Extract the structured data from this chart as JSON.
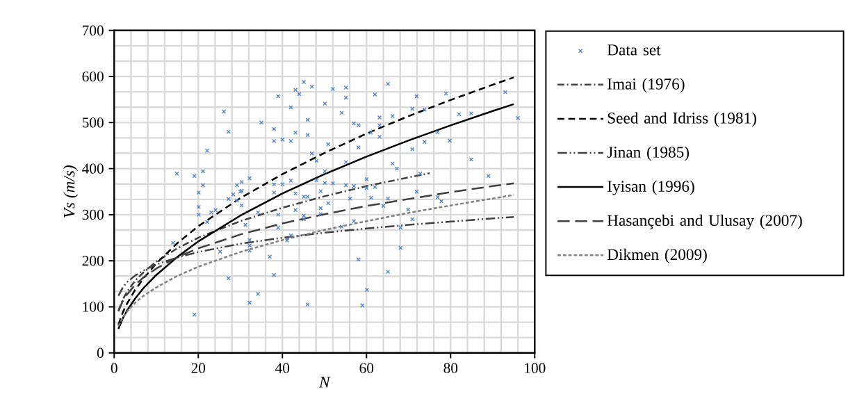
{
  "chart_data": {
    "type": "line",
    "xlabel": "N",
    "ylabel": "Vs (m/s)",
    "xlim": [
      0,
      100
    ],
    "ylim": [
      0,
      700
    ],
    "xticks": [
      0,
      20,
      40,
      60,
      80,
      100
    ],
    "yticks": [
      0,
      100,
      200,
      300,
      400,
      500,
      600,
      700
    ],
    "grid": true,
    "legend": "right",
    "series": [
      {
        "name": "Data set",
        "type": "scatter",
        "marker": "cross",
        "color": "#4f81bd",
        "x": [
          26.1,
          27.2,
          22.1,
          14.9,
          19.1,
          21.1,
          21.1,
          20.1,
          20.1,
          20.1,
          22.1,
          23.1,
          24.1,
          32.2,
          29.2,
          30.3,
          30.3,
          30,
          28.3,
          27.2,
          29.2,
          30.3,
          31.2,
          32.2,
          32.2,
          32.2,
          34.2,
          25.2,
          14.0,
          27.2,
          34.2,
          32.2,
          19.1,
          35.0,
          39.0,
          38.0,
          38.0,
          40.0,
          42.0,
          42.0,
          43.1,
          44.0,
          45.1,
          47.0,
          43.1,
          46.0,
          46.0,
          50.1,
          52.0,
          55.1,
          55.1,
          54.1,
          57.0,
          58.1,
          50.9,
          47.0,
          48.1,
          50.1,
          48.1,
          50.1,
          52.0,
          55.1,
          58.1,
          60.0,
          61.0,
          62.0,
          63.1,
          63.1,
          63.1,
          65.1,
          66.2,
          66.2,
          67.2,
          38.0,
          40.0,
          42.0,
          38.0,
          43.1,
          49.1,
          45.1,
          46.0,
          55.1,
          57.0,
          60.0,
          62.0,
          56.1,
          61.1,
          65.1,
          50.9,
          49.1,
          64.0,
          39.0,
          43.1,
          45.1,
          45.1,
          49.1,
          39.0,
          42.0,
          41.1,
          54.1,
          57.0,
          68.1,
          68.1,
          37.0,
          38.0,
          58.1,
          65.1,
          60.1,
          46.0,
          59.0,
          71.9,
          70.9,
          73.8,
          78.9,
          93.0,
          82.0,
          84.9,
          96.0,
          76.9,
          73.8,
          70.9,
          79.8,
          84.9,
          72.8,
          89.0,
          71.9,
          76.9,
          77.8,
          69.9,
          70.9
        ],
        "values": [
          524,
          480,
          439,
          389,
          384,
          394,
          364,
          348,
          317,
          300,
          284,
          305,
          310,
          379,
          364,
          371,
          352,
          350,
          344,
          334,
          331,
          320,
          278,
          245,
          233,
          222,
          305,
          220,
          239,
          162,
          128,
          109,
          83,
          500,
          557,
          486,
          460,
          463,
          460,
          533,
          571,
          562,
          588,
          578,
          478,
          506,
          473,
          541,
          573,
          576,
          554,
          521,
          498,
          494,
          453,
          433,
          417,
          394,
          375,
          369,
          368,
          414,
          446,
          377,
          478,
          561,
          511,
          494,
          469,
          584,
          514,
          411,
          400,
          366,
          366,
          374,
          348,
          346,
          351,
          339,
          339,
          364,
          362,
          358,
          360,
          335,
          337,
          335,
          325,
          314,
          319,
          300,
          310,
          298,
          290,
          301,
          272,
          255,
          244,
          274,
          286,
          272,
          228,
          209,
          169,
          203,
          176,
          137,
          105,
          103,
          557,
          530,
          528,
          563,
          566,
          518,
          520,
          510,
          479,
          458,
          442,
          461,
          420,
          389,
          384,
          350,
          338,
          329,
          311,
          290
        ]
      },
      {
        "name": "Imai (1976)",
        "line_style": "dashdotted",
        "color": "#404040",
        "x": [
          1,
          2,
          3,
          5,
          7,
          10,
          15,
          20,
          30,
          40,
          50,
          60,
          70,
          75
        ],
        "values": [
          91,
          115,
          132,
          157,
          175,
          198,
          227,
          250,
          286,
          315,
          340,
          362,
          381,
          390
        ]
      },
      {
        "name": "Seed and Idriss (1981)",
        "line_style": "dashed",
        "color": "#000000",
        "x": [
          1,
          2,
          3,
          5,
          7,
          10,
          15,
          20,
          30,
          40,
          50,
          60,
          70,
          80,
          90,
          95
        ],
        "values": [
          61,
          87,
          106,
          137,
          162,
          194,
          238,
          275,
          336,
          388,
          434,
          476,
          514,
          549,
          582,
          598
        ]
      },
      {
        "name": "Jinan (1985)",
        "line_style": "dashdotdotted",
        "color": "#404040",
        "x": [
          1,
          2,
          3,
          5,
          7,
          10,
          15,
          20,
          30,
          40,
          50,
          60,
          70,
          80,
          90,
          95
        ],
        "values": [
          124,
          141,
          153,
          168,
          179,
          192,
          207,
          219,
          237,
          250,
          261,
          270,
          278,
          285,
          292,
          295
        ]
      },
      {
        "name": "Iyisan (1996)",
        "line_style": "solid",
        "color": "#000000",
        "x": [
          1,
          2,
          3,
          5,
          7,
          10,
          15,
          20,
          30,
          40,
          50,
          60,
          70,
          80,
          90,
          95
        ],
        "values": [
          52,
          74,
          91,
          118,
          141,
          169,
          208,
          242,
          298,
          346,
          388,
          426,
          461,
          494,
          525,
          540
        ]
      },
      {
        "name": "Hasançebi and Ulusay (2007)",
        "line_style": "longdashed",
        "color": "#404040",
        "x": [
          1,
          2,
          3,
          5,
          7,
          10,
          15,
          20,
          30,
          40,
          50,
          60,
          70,
          80,
          90,
          95
        ],
        "values": [
          90,
          112,
          126,
          148,
          164,
          183,
          208,
          227,
          257,
          281,
          301,
          319,
          334,
          349,
          362,
          368
        ]
      },
      {
        "name": "Dikmen (2009)",
        "line_style": "dotted",
        "color": "#808080",
        "x": [
          1,
          2,
          3,
          5,
          7,
          10,
          15,
          20,
          30,
          40,
          50,
          60,
          70,
          80,
          90,
          95
        ],
        "values": [
          58,
          76,
          89,
          109,
          124,
          142,
          167,
          187,
          219,
          245,
          267,
          286,
          304,
          320,
          335,
          343
        ]
      }
    ]
  }
}
